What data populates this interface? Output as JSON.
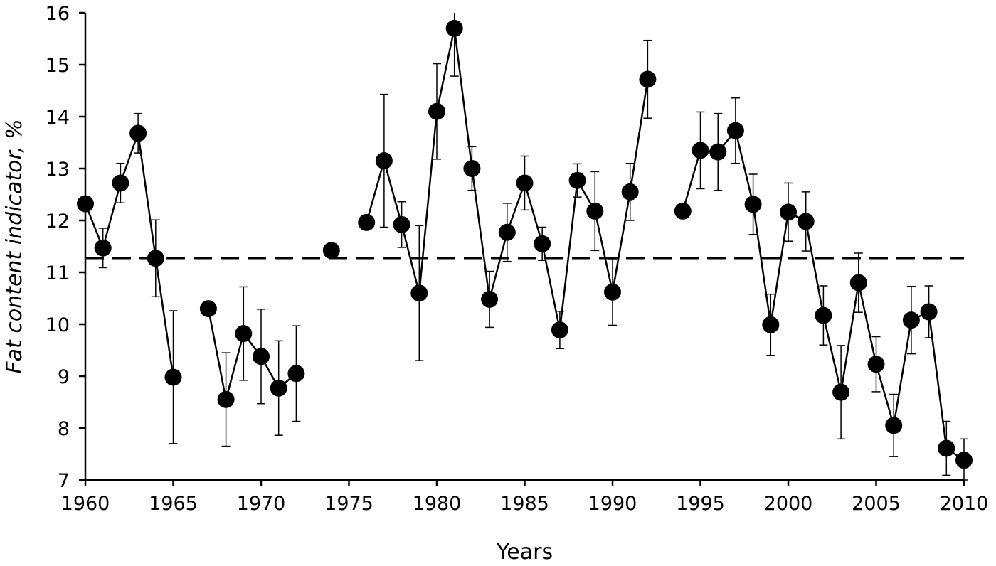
{
  "chart_data": {
    "type": "line",
    "title": "",
    "xlabel": "Years",
    "ylabel": "Fat content indicator, %",
    "xlim": [
      1960,
      2010
    ],
    "ylim": [
      7,
      16
    ],
    "x_ticks": [
      "1960",
      "1965",
      "1970",
      "1975",
      "1980",
      "1985",
      "1990",
      "1995",
      "2000",
      "2005",
      "2010"
    ],
    "y_ticks": [
      "7",
      "8",
      "9",
      "10",
      "11",
      "12",
      "13",
      "14",
      "15",
      "16"
    ],
    "grid": false,
    "legend": "none",
    "reference_line": {
      "y": 11.27,
      "style": "dashed"
    },
    "series": [
      {
        "points": [
          {
            "x": 1960,
            "y": 12.32
          },
          {
            "x": 1961,
            "y": 11.47,
            "err": 0.38
          },
          {
            "x": 1962,
            "y": 12.72,
            "err": 0.38
          },
          {
            "x": 1963,
            "y": 13.68,
            "err": 0.38
          },
          {
            "x": 1964,
            "y": 11.27,
            "err": 0.74
          },
          {
            "x": 1965,
            "y": 8.98,
            "err": 1.28
          },
          {
            "x": 1967,
            "y": 10.3
          },
          {
            "x": 1968,
            "y": 8.55,
            "err": 0.9
          },
          {
            "x": 1969,
            "y": 9.82,
            "err": 0.9
          },
          {
            "x": 1970,
            "y": 9.38,
            "err": 0.91
          },
          {
            "x": 1971,
            "y": 8.77,
            "err": 0.91
          },
          {
            "x": 1972,
            "y": 9.05,
            "err": 0.92
          },
          {
            "x": 1974,
            "y": 11.42
          },
          {
            "x": 1976,
            "y": 11.96
          },
          {
            "x": 1977,
            "y": 13.15,
            "err": 1.28
          },
          {
            "x": 1978,
            "y": 11.92,
            "err": 0.44
          },
          {
            "x": 1979,
            "y": 10.6,
            "err": 1.3
          },
          {
            "x": 1980,
            "y": 14.1,
            "err": 0.92
          },
          {
            "x": 1981,
            "y": 15.7,
            "err": 0.92
          },
          {
            "x": 1982,
            "y": 13.0,
            "err": 0.42
          },
          {
            "x": 1983,
            "y": 10.48,
            "err": 0.54
          },
          {
            "x": 1984,
            "y": 11.77,
            "err": 0.56
          },
          {
            "x": 1985,
            "y": 12.72,
            "err": 0.52
          },
          {
            "x": 1986,
            "y": 11.55,
            "err": 0.32
          },
          {
            "x": 1987,
            "y": 9.89,
            "err": 0.36
          },
          {
            "x": 1988,
            "y": 12.77,
            "err": 0.32
          },
          {
            "x": 1989,
            "y": 12.18,
            "err": 0.76
          },
          {
            "x": 1990,
            "y": 10.62,
            "err": 0.64
          },
          {
            "x": 1991,
            "y": 12.55,
            "err": 0.55
          },
          {
            "x": 1992,
            "y": 14.72,
            "err": 0.75
          },
          {
            "x": 1994,
            "y": 12.18
          },
          {
            "x": 1995,
            "y": 13.35,
            "err": 0.74
          },
          {
            "x": 1996,
            "y": 13.32,
            "err": 0.74
          },
          {
            "x": 1997,
            "y": 13.73,
            "err": 0.63
          },
          {
            "x": 1998,
            "y": 12.31,
            "err": 0.58
          },
          {
            "x": 1999,
            "y": 9.99,
            "err": 0.59
          },
          {
            "x": 2000,
            "y": 12.16,
            "err": 0.56
          },
          {
            "x": 2001,
            "y": 11.98,
            "err": 0.57
          },
          {
            "x": 2002,
            "y": 10.17,
            "err": 0.57
          },
          {
            "x": 2003,
            "y": 8.69,
            "err": 0.9
          },
          {
            "x": 2004,
            "y": 10.8,
            "err": 0.57
          },
          {
            "x": 2005,
            "y": 9.23,
            "err": 0.53
          },
          {
            "x": 2006,
            "y": 8.05,
            "err": 0.6
          },
          {
            "x": 2007,
            "y": 10.08,
            "err": 0.65
          },
          {
            "x": 2008,
            "y": 10.24,
            "err": 0.5
          },
          {
            "x": 2009,
            "y": 7.61,
            "err": 0.52
          },
          {
            "x": 2010,
            "y": 7.38,
            "err": 0.41
          }
        ]
      }
    ]
  }
}
